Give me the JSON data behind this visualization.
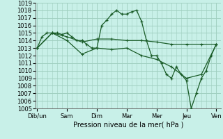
{
  "xlabel": "Pression niveau de la mer( hPa )",
  "ylim": [
    1005,
    1019
  ],
  "background_color": "#c8f0e8",
  "grid_color": "#a0cfc0",
  "line_color": "#1a5c28",
  "x_labels": [
    "Dib/un",
    "Sam",
    "Dim",
    "Mar",
    "Mer",
    "Jeu",
    "Ven"
  ],
  "series1": {
    "x": [
      0.0,
      0.16,
      0.33,
      0.5,
      0.66,
      0.83,
      1.0,
      1.16,
      1.33,
      1.5,
      1.66,
      1.83,
      2.0,
      2.16,
      2.33,
      2.5,
      2.66,
      2.83,
      3.0,
      3.16,
      3.33,
      3.5,
      3.66,
      3.83,
      4.0,
      4.16,
      4.33,
      4.5,
      4.66,
      4.83,
      5.0,
      5.16,
      5.33,
      5.5,
      5.66,
      5.83,
      6.0
    ],
    "y": [
      1013.0,
      1014.5,
      1015.0,
      1015.0,
      1015.0,
      1014.8,
      1015.0,
      1014.5,
      1014.0,
      1014.0,
      1013.5,
      1013.0,
      1013.0,
      1016.0,
      1016.7,
      1017.5,
      1018.0,
      1017.5,
      1017.5,
      1017.8,
      1018.0,
      1016.5,
      1014.0,
      1012.0,
      1012.0,
      1011.0,
      1009.5,
      1009.0,
      1010.5,
      1009.5,
      1008.7,
      1005.0,
      1007.0,
      1009.0,
      1010.0,
      1012.0,
      1013.5
    ]
  },
  "series2": {
    "x": [
      0.0,
      0.5,
      1.0,
      1.5,
      2.0,
      2.5,
      3.0,
      3.5,
      4.0,
      4.5,
      5.0,
      5.5,
      6.0
    ],
    "y": [
      1013.0,
      1015.0,
      1014.5,
      1013.8,
      1014.2,
      1014.2,
      1014.0,
      1014.0,
      1013.8,
      1013.5,
      1013.5,
      1013.5,
      1013.5
    ]
  },
  "series3": {
    "x": [
      0.0,
      0.5,
      1.0,
      1.5,
      2.0,
      2.5,
      3.0,
      3.5,
      4.0,
      4.5,
      5.0,
      5.5,
      6.0
    ],
    "y": [
      1013.0,
      1015.0,
      1014.0,
      1012.2,
      1013.0,
      1012.8,
      1013.0,
      1012.0,
      1011.5,
      1010.5,
      1009.0,
      1009.5,
      1013.5
    ]
  }
}
